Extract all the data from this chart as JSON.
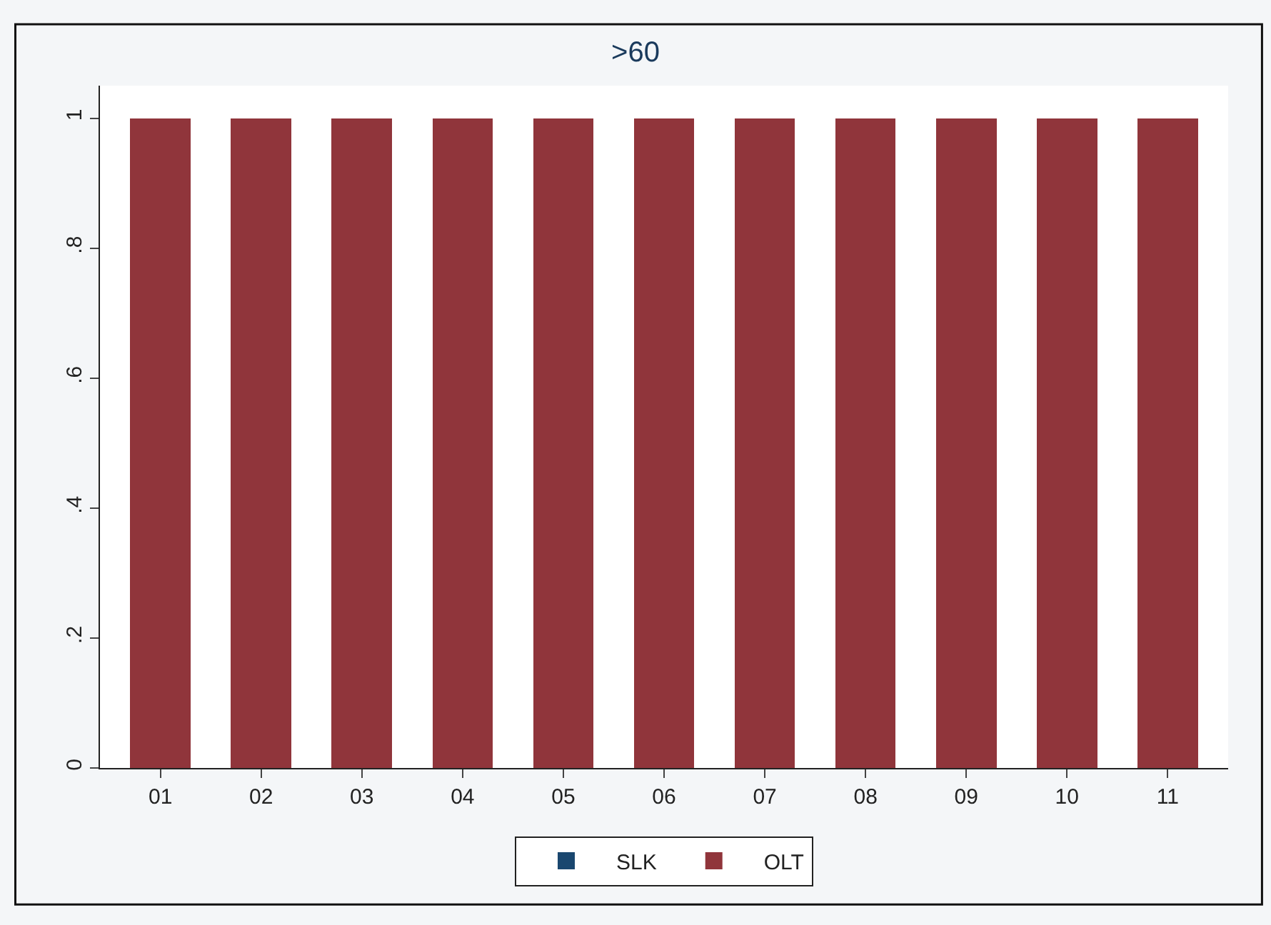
{
  "chart_data": {
    "type": "bar",
    "title": ">60",
    "stacked": true,
    "categories": [
      "01",
      "02",
      "03",
      "04",
      "05",
      "06",
      "07",
      "08",
      "09",
      "10",
      "11"
    ],
    "series": [
      {
        "name": "SLK",
        "color": "#1a476f",
        "values": [
          0,
          0,
          0,
          0,
          0,
          0,
          0,
          0,
          0,
          0,
          0
        ]
      },
      {
        "name": "OLT",
        "color": "#90353b",
        "values": [
          1,
          1,
          1,
          1,
          1,
          1,
          1,
          1,
          1,
          1,
          1
        ]
      }
    ],
    "ylim": [
      0,
      1.05
    ],
    "yticks": [
      0,
      {
        "value": 0.2,
        "label": ".2"
      },
      {
        "value": 0.4,
        "label": ".4"
      },
      {
        "value": 0.6,
        "label": ".6"
      },
      {
        "value": 0.8,
        "label": ".8"
      },
      1
    ],
    "grid": false,
    "legend": "bottom"
  }
}
